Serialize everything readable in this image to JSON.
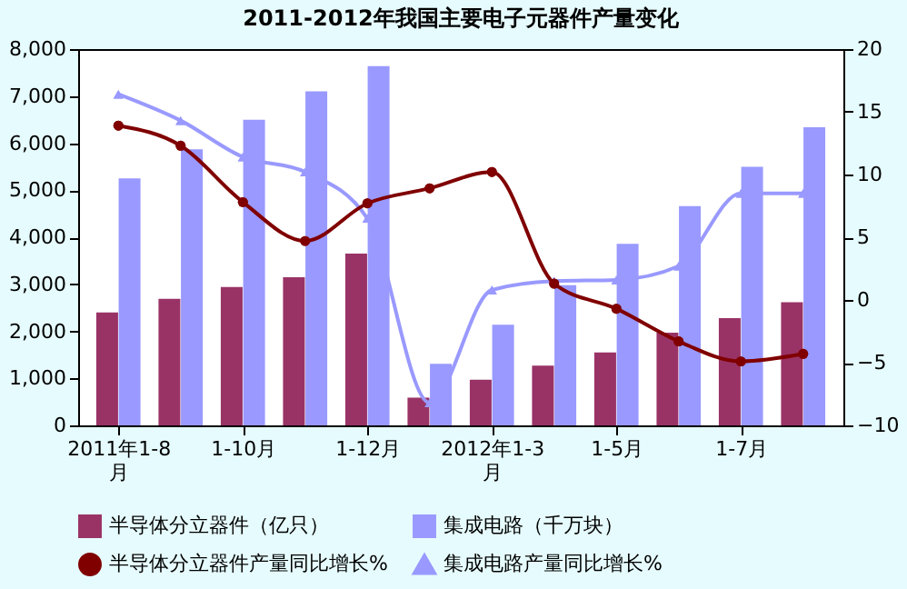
{
  "chart_data": {
    "type": "bar",
    "title": "2011-2012年我国主要电子元器件产量变化",
    "categories": [
      "2011年1-8月",
      null,
      "1-10月",
      null,
      "1-12月",
      null,
      "2012年1-3月",
      null,
      "1-5月",
      null,
      "1-7月",
      null
    ],
    "series": [
      {
        "name": "半导体分立器件（亿只）",
        "type": "bar",
        "color": "#993366",
        "values": [
          2400,
          2690,
          2940,
          3150,
          3650,
          590,
          970,
          1270,
          1550,
          1970,
          2280,
          2620
        ]
      },
      {
        "name": "集成电路（千万块）",
        "type": "bar",
        "color": "#9999ff",
        "values": [
          5250,
          5870,
          6500,
          7100,
          7640,
          1310,
          2140,
          2980,
          3860,
          4660,
          5500,
          6340
        ]
      },
      {
        "name": "半导体分立器件产量同比增长%",
        "type": "line",
        "axis": "y2",
        "marker": "circle",
        "color": "#800000",
        "values": [
          13.9,
          12.3,
          7.8,
          4.7,
          7.7,
          8.9,
          10.2,
          1.3,
          -0.7,
          -3.3,
          -4.9,
          -4.3
        ]
      },
      {
        "name": "集成电路产量同比增长%",
        "type": "line",
        "axis": "y2",
        "marker": "triangle",
        "color": "#9999ff",
        "values": [
          16.4,
          14.3,
          11.4,
          10.2,
          6.5,
          -8.2,
          0.8,
          1.5,
          1.6,
          2.7,
          8.5,
          8.5
        ]
      }
    ],
    "ylim": [
      0,
      8000
    ],
    "yticks": [
      0,
      {
        "value": 1000,
        "label": "1,000"
      },
      {
        "value": 2000,
        "label": "2,000"
      },
      {
        "value": 3000,
        "label": "3,000"
      },
      {
        "value": 4000,
        "label": "4,000"
      },
      {
        "value": 5000,
        "label": "5,000"
      },
      {
        "value": 6000,
        "label": "6,000"
      },
      {
        "value": 7000,
        "label": "7,000"
      },
      {
        "value": 8000,
        "label": "8,000"
      }
    ],
    "y2lim": [
      -10,
      20
    ],
    "y2ticks": [
      -10,
      -5,
      0,
      5,
      10,
      15,
      20
    ],
    "grid": false,
    "legend": "bottom"
  }
}
